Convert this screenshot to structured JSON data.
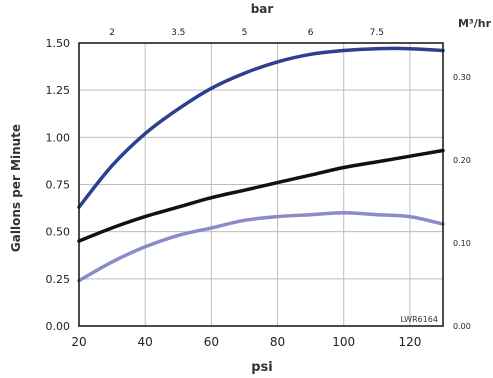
{
  "chart_data": {
    "type": "line",
    "xlabel": "psi",
    "ylabel": "Gallons per Minute",
    "top_axis_label": "bar",
    "right_axis_label": "M³/hr",
    "xlim": [
      20,
      130
    ],
    "ylim": [
      0,
      1.5
    ],
    "x_ticks": [
      "20",
      "40",
      "60",
      "80",
      "100",
      "120"
    ],
    "y_ticks": [
      "0.00",
      "0.25",
      "0.50",
      "0.75",
      "1.00",
      "1.25",
      "1.50"
    ],
    "top_ticks": [
      {
        "label": "2",
        "psi": 30
      },
      {
        "label": "3.5",
        "psi": 50
      },
      {
        "label": "5",
        "psi": 70
      },
      {
        "label": "6",
        "psi": 90
      },
      {
        "label": "7.5",
        "psi": 110
      }
    ],
    "right_ticks": [
      {
        "label": "0.00",
        "gpm": 0.0
      },
      {
        "label": "0.10",
        "gpm": 0.44
      },
      {
        "label": "0.20",
        "gpm": 0.88
      },
      {
        "label": "0.30",
        "gpm": 1.32
      }
    ],
    "annotation": "LWR6164",
    "grid": true,
    "series": [
      {
        "color": "#2f3f8f",
        "x": [
          20,
          30,
          40,
          50,
          60,
          70,
          80,
          90,
          100,
          110,
          120,
          130
        ],
        "y": [
          0.63,
          0.85,
          1.02,
          1.15,
          1.26,
          1.34,
          1.4,
          1.44,
          1.46,
          1.47,
          1.47,
          1.46
        ]
      },
      {
        "color": "#111111",
        "x": [
          20,
          30,
          40,
          50,
          60,
          70,
          80,
          90,
          100,
          110,
          120,
          130
        ],
        "y": [
          0.45,
          0.52,
          0.58,
          0.63,
          0.68,
          0.72,
          0.76,
          0.8,
          0.84,
          0.87,
          0.9,
          0.93
        ]
      },
      {
        "color": "#8a8cc8",
        "x": [
          20,
          30,
          40,
          50,
          60,
          70,
          80,
          90,
          100,
          110,
          120,
          130
        ],
        "y": [
          0.24,
          0.34,
          0.42,
          0.48,
          0.52,
          0.56,
          0.58,
          0.59,
          0.6,
          0.59,
          0.58,
          0.54
        ]
      }
    ]
  }
}
